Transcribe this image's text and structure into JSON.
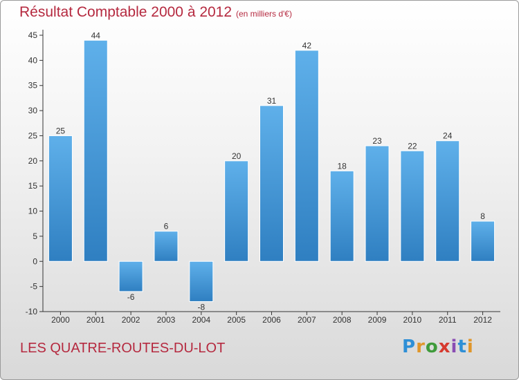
{
  "header": {
    "title": "Résultat Comptable 2000 à 2012",
    "subtitle": "(en milliers d'€)"
  },
  "footer": {
    "place": "LES QUATRE-ROUTES-DU-LOT",
    "logo_letters": [
      "P",
      "r",
      "o",
      "x",
      "i",
      "t",
      "i"
    ]
  },
  "colors": {
    "bar_top": "#5fb0ea",
    "bar_bottom": "#2f7fc1",
    "title": "#b5293f",
    "axis": "#333333"
  },
  "chart_data": {
    "type": "bar",
    "title": "Résultat Comptable 2000 à 2012",
    "subtitle": "(en milliers d'€)",
    "categories": [
      "2000",
      "2001",
      "2002",
      "2003",
      "2004",
      "2005",
      "2006",
      "2007",
      "2008",
      "2009",
      "2010",
      "2011",
      "2012"
    ],
    "values": [
      25,
      44,
      -6,
      6,
      -8,
      20,
      31,
      42,
      18,
      23,
      22,
      24,
      8
    ],
    "ylim": [
      -10,
      45
    ],
    "yticks": [
      -10,
      -5,
      0,
      5,
      10,
      15,
      20,
      25,
      30,
      35,
      40,
      45
    ],
    "xlabel": "",
    "ylabel": "",
    "grid": false,
    "legend": "none"
  }
}
